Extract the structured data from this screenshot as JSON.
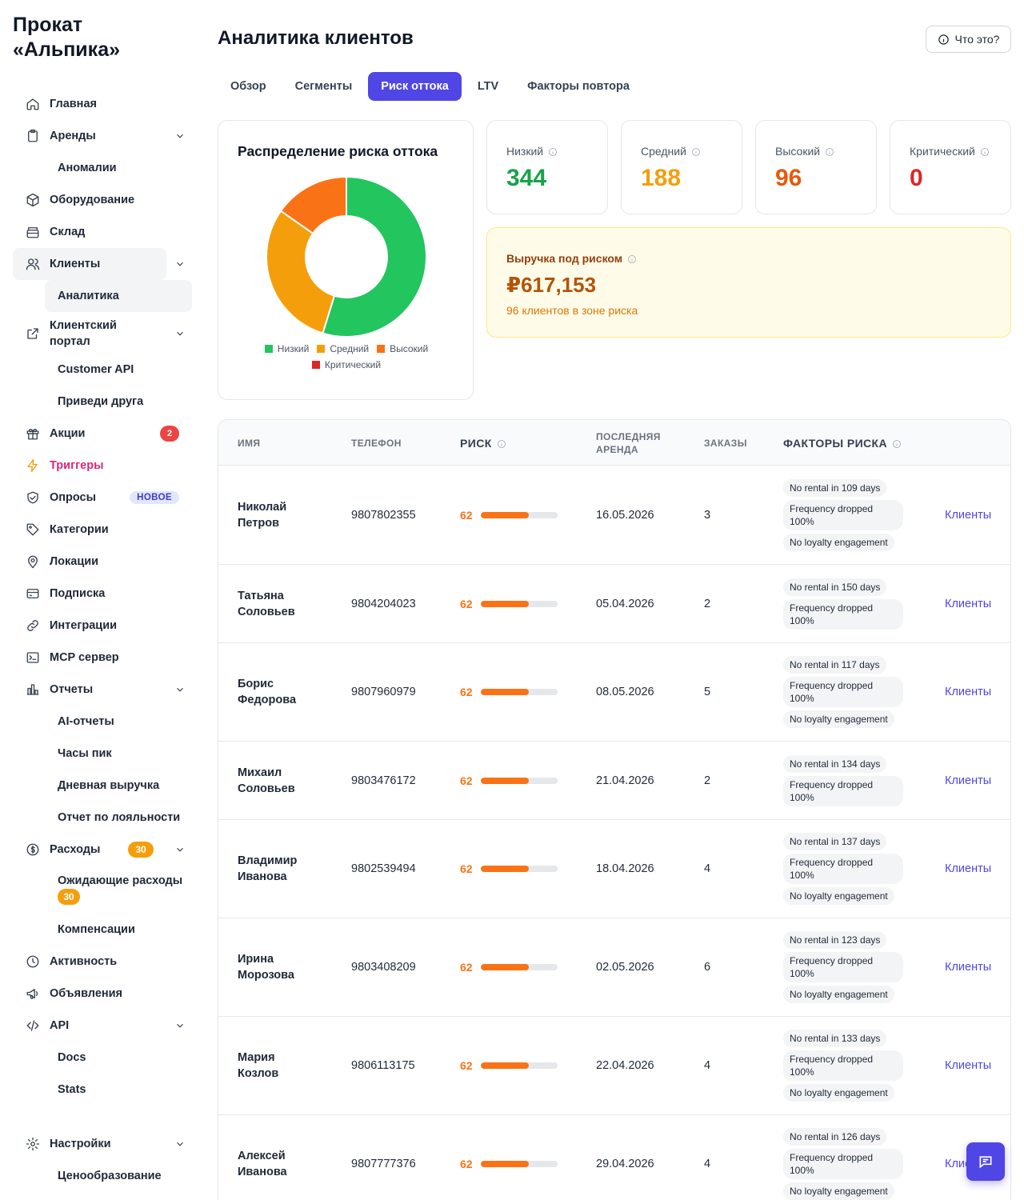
{
  "brand": {
    "line1": "Прокат",
    "line2": "«Альпика»"
  },
  "sidebar": {
    "items": [
      {
        "label": "Главная",
        "icon": "home-icon"
      },
      {
        "label": "Аренды",
        "icon": "clipboard-icon"
      },
      {
        "label": "Аномалии"
      },
      {
        "label": "Оборудование",
        "icon": "box-icon"
      },
      {
        "label": "Склад",
        "icon": "warehouse-icon"
      },
      {
        "label": "Клиенты",
        "icon": "users-icon"
      },
      {
        "label": "Аналитика"
      },
      {
        "label_line1": "Клиентский",
        "label_line2": "портал",
        "icon": "external-link-icon"
      },
      {
        "label": "Customer API"
      },
      {
        "label": "Приведи друга"
      },
      {
        "label": "Акции",
        "icon": "gift-icon",
        "badge": "2"
      },
      {
        "label": "Триггеры",
        "icon": "lightning-icon"
      },
      {
        "label": "Опросы",
        "icon": "shield-check-icon",
        "badge": "НОВОЕ"
      },
      {
        "label": "Категории",
        "icon": "tag-icon"
      },
      {
        "label": "Локации",
        "icon": "map-pin-icon"
      },
      {
        "label": "Подписка",
        "icon": "credit-card-icon"
      },
      {
        "label": "Интеграции",
        "icon": "link-icon"
      },
      {
        "label": "MCP сервер",
        "icon": "terminal-icon"
      },
      {
        "label": "Отчеты",
        "icon": "bar-chart-icon"
      },
      {
        "label": "AI-отчеты"
      },
      {
        "label": "Часы пик"
      },
      {
        "label": "Дневная выручка"
      },
      {
        "label": "Отчет по лояльности"
      },
      {
        "label": "Расходы",
        "icon": "dollar-circle-icon",
        "badge": "30"
      },
      {
        "label": "Ожидающие расходы",
        "badge": "30"
      },
      {
        "label": "Компенсации"
      },
      {
        "label": "Активность",
        "icon": "clock-icon"
      },
      {
        "label": "Объявления",
        "icon": "megaphone-icon"
      },
      {
        "label": "API",
        "icon": "code-icon"
      },
      {
        "label": "Docs"
      },
      {
        "label": "Stats"
      },
      {
        "label": "Настройки",
        "icon": "gear-icon"
      },
      {
        "label": "Ценообразование"
      }
    ]
  },
  "header": {
    "title": "Аналитика клиентов",
    "help_label": "Что это?"
  },
  "tabs": [
    {
      "label": "Обзор"
    },
    {
      "label": "Сегменты"
    },
    {
      "label": "Риск оттока"
    },
    {
      "label": "LTV"
    },
    {
      "label": "Факторы повтора"
    }
  ],
  "chart_data": {
    "type": "pie",
    "title": "Распределение риска оттока",
    "categories": [
      "Низкий",
      "Средний",
      "Высокий",
      "Критический"
    ],
    "values": [
      344,
      188,
      96,
      0
    ],
    "colors": [
      "#22c55e",
      "#f59e0b",
      "#f97316",
      "#dc2626"
    ],
    "legend": "bottom"
  },
  "stats": [
    {
      "label": "Низкий",
      "value": "344",
      "color": "#16a34a"
    },
    {
      "label": "Средний",
      "value": "188",
      "color": "#f59e0b"
    },
    {
      "label": "Высокий",
      "value": "96",
      "color": "#ea580c"
    },
    {
      "label": "Критический",
      "value": "0",
      "color": "#dc2626"
    }
  ],
  "revenue_risk": {
    "label": "Выручка под риском",
    "value": "₽617,153",
    "sub": "96 клиентов в зоне риска"
  },
  "table": {
    "headers": {
      "name": "ИМЯ",
      "phone": "ТЕЛЕФОН",
      "risk": "РИСК",
      "last_line1": "ПОСЛЕДНЯЯ",
      "last_line2": "АРЕНДА",
      "orders": "ЗАКАЗЫ",
      "factors": "ФАКТОРЫ РИСКА"
    },
    "rows": [
      {
        "first": "Николай",
        "last": "Петров",
        "phone": "9807802355",
        "risk": "62",
        "risk_pct": 62,
        "date": "16.05.2026",
        "orders": "3",
        "f1": "No rental in 109 days",
        "f2": "Frequency dropped 100%",
        "f3": "No loyalty engagement",
        "link": "Клиенты"
      },
      {
        "first": "Татьяна",
        "last": "Соловьев",
        "phone": "9804204023",
        "risk": "62",
        "risk_pct": 62,
        "date": "05.04.2026",
        "orders": "2",
        "f1": "No rental in 150 days",
        "f2": "Frequency dropped 100%",
        "f3": "",
        "link": "Клиенты"
      },
      {
        "first": "Борис",
        "last": "Федорова",
        "phone": "9807960979",
        "risk": "62",
        "risk_pct": 62,
        "date": "08.05.2026",
        "orders": "5",
        "f1": "No rental in 117 days",
        "f2": "Frequency dropped 100%",
        "f3": "No loyalty engagement",
        "link": "Клиенты"
      },
      {
        "first": "Михаил",
        "last": "Соловьев",
        "phone": "9803476172",
        "risk": "62",
        "risk_pct": 62,
        "date": "21.04.2026",
        "orders": "2",
        "f1": "No rental in 134 days",
        "f2": "Frequency dropped 100%",
        "f3": "",
        "link": "Клиенты"
      },
      {
        "first": "Владимир",
        "last": "Иванова",
        "phone": "9802539494",
        "risk": "62",
        "risk_pct": 62,
        "date": "18.04.2026",
        "orders": "4",
        "f1": "No rental in 137 days",
        "f2": "Frequency dropped 100%",
        "f3": "No loyalty engagement",
        "link": "Клиенты"
      },
      {
        "first": "Ирина",
        "last": "Морозова",
        "phone": "9803408209",
        "risk": "62",
        "risk_pct": 62,
        "date": "02.05.2026",
        "orders": "6",
        "f1": "No rental in 123 days",
        "f2": "Frequency dropped 100%",
        "f3": "No loyalty engagement",
        "link": "Клиенты"
      },
      {
        "first": "Мария",
        "last": "Козлов",
        "phone": "9806113175",
        "risk": "62",
        "risk_pct": 62,
        "date": "22.04.2026",
        "orders": "4",
        "f1": "No rental in 133 days",
        "f2": "Frequency dropped 100%",
        "f3": "No loyalty engagement",
        "link": "Клиенты"
      },
      {
        "first": "Алексей",
        "last": "Иванова",
        "phone": "9807777376",
        "risk": "62",
        "risk_pct": 62,
        "date": "29.04.2026",
        "orders": "4",
        "f1": "No rental in 126 days",
        "f2": "Frequency dropped 100%",
        "f3": "No loyalty engagement",
        "link": "Клиенты"
      }
    ]
  }
}
